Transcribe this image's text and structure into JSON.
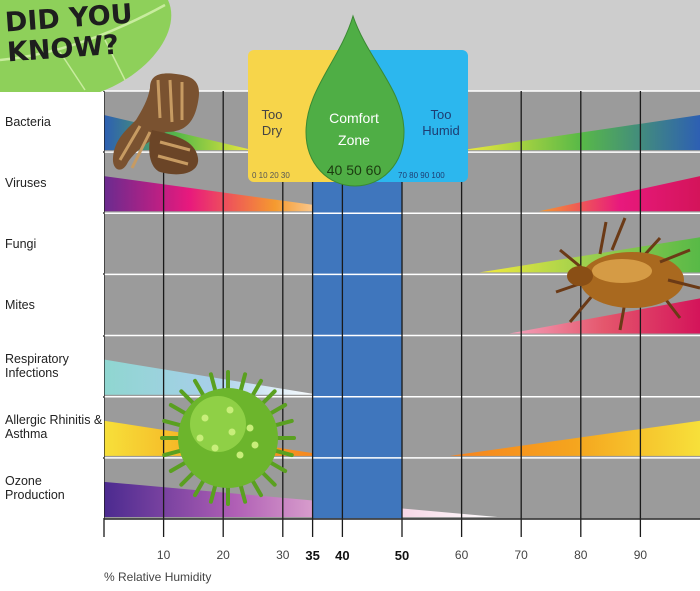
{
  "headline": {
    "line1": "DID YOU",
    "line2": "KNOW?"
  },
  "zones": {
    "dry": {
      "line1": "Too",
      "line2": "Dry",
      "scale": "0 10 20 30",
      "color": "#f7d54a"
    },
    "comfort": {
      "line1": "Comfort",
      "line2": "Zone",
      "scale": "40 50 60",
      "color": "#4fae45",
      "band_color": "#3f76bd"
    },
    "humid": {
      "line1": "Too",
      "line2": "Humid",
      "scale": "70 80 90 100",
      "color": "#2cb7ee"
    }
  },
  "icons": [
    "leaf-icon",
    "bacteria-icon",
    "mite-icon",
    "pollen-icon",
    "water-drop-icon"
  ],
  "chart_data": {
    "type": "area",
    "xlabel": "% Relative Humidity",
    "xlim": [
      0,
      100
    ],
    "x_ticks": [
      {
        "value": 10,
        "label": "10",
        "bold": false
      },
      {
        "value": 20,
        "label": "20",
        "bold": false
      },
      {
        "value": 30,
        "label": "30",
        "bold": false
      },
      {
        "value": 35,
        "label": "35",
        "bold": true
      },
      {
        "value": 40,
        "label": "40",
        "bold": true
      },
      {
        "value": 50,
        "label": "50",
        "bold": true
      },
      {
        "value": 60,
        "label": "60",
        "bold": false
      },
      {
        "value": 70,
        "label": "70",
        "bold": false
      },
      {
        "value": 80,
        "label": "80",
        "bold": false
      },
      {
        "value": 90,
        "label": "90",
        "bold": false
      }
    ],
    "comfort_zone": [
      35,
      50
    ],
    "grid": true,
    "rows": [
      {
        "label": "Bacteria",
        "wedges": [
          {
            "start": 0,
            "end": 25,
            "side": "low",
            "colors": [
              "#2d5fb3",
              "#58b947",
              "#f2ea3c"
            ]
          },
          {
            "start": 60,
            "end": 100,
            "side": "high",
            "colors": [
              "#f2ea3c",
              "#58b947",
              "#2d5fb3"
            ]
          }
        ]
      },
      {
        "label": "Viruses",
        "wedges": [
          {
            "start": 0,
            "end": 43,
            "side": "low",
            "colors": [
              "#6a2b8f",
              "#e8197d",
              "#f59a2f",
              "#ffffff"
            ]
          },
          {
            "start": 73,
            "end": 100,
            "side": "high",
            "colors": [
              "#f59a2f",
              "#e8197d",
              "#d4145a"
            ]
          }
        ]
      },
      {
        "label": "Fungi",
        "wedges": [
          {
            "start": 63,
            "end": 100,
            "side": "high",
            "colors": [
              "#f2ea3c",
              "#9bcf4e",
              "#58b947"
            ]
          }
        ]
      },
      {
        "label": "Mites",
        "wedges": [
          {
            "start": 68,
            "end": 100,
            "side": "high",
            "colors": [
              "#f4a3bc",
              "#e4566c",
              "#d4145a"
            ]
          }
        ]
      },
      {
        "label": "Respiratory Infections",
        "wedges": [
          {
            "start": 0,
            "end": 36,
            "side": "low",
            "colors": [
              "#8fd6d0",
              "#a7cfe9",
              "#ffffff"
            ]
          }
        ]
      },
      {
        "label": "Allergic Rhinitis & Asthma",
        "wedges": [
          {
            "start": 0,
            "end": 38,
            "side": "low",
            "colors": [
              "#f7e03a",
              "#f5a51e",
              "#f7831f"
            ]
          },
          {
            "start": 58,
            "end": 100,
            "side": "high",
            "colors": [
              "#f7831f",
              "#f5a51e",
              "#f7e03a"
            ]
          }
        ]
      },
      {
        "label": "Ozone Production",
        "wedges": [
          {
            "start": 0,
            "end": 66,
            "side": "low",
            "colors": [
              "#4b2a8f",
              "#b05fb5",
              "#f3c7dc",
              "#ffffff"
            ]
          }
        ]
      }
    ]
  }
}
